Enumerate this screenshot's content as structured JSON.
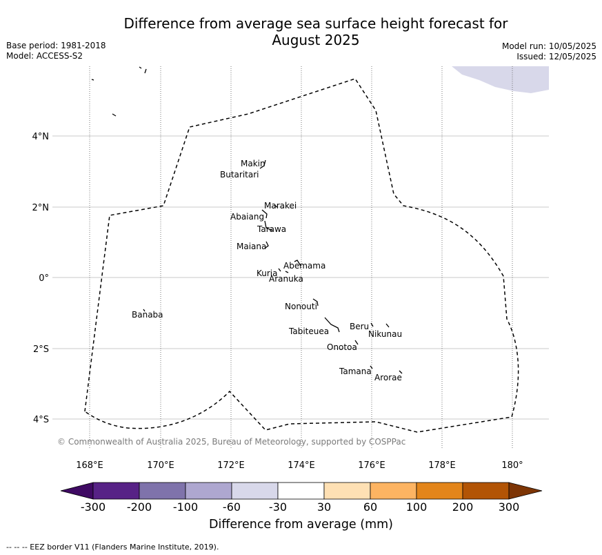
{
  "title_line1": "Difference from average sea surface height forecast for",
  "title_line2": "August 2025",
  "base_period": "Base period: 1981-2018",
  "model": "Model: ACCESS-S2",
  "model_run": "Model run: 10/05/2025",
  "issued": "Issued: 12/05/2025",
  "x_ticks": [
    "168°E",
    "170°E",
    "172°E",
    "174°E",
    "176°E",
    "178°E",
    "180°"
  ],
  "y_ticks": [
    "4°N",
    "2°N",
    "0°",
    "2°S",
    "4°S"
  ],
  "islands": [
    "Makin",
    "Butaritari",
    "Marakei",
    "Abaiang",
    "Tarawa",
    "Maiana",
    "Abemama",
    "Kuria",
    "Aranuka",
    "Banaba",
    "Nonouti",
    "Tabiteuea",
    "Beru",
    "Nikunau",
    "Onotoa",
    "Tamana",
    "Arorae"
  ],
  "copyright": "© Commonwealth of Australia 2025, Bureau of Meteorology, supported by COSPPac",
  "colorbar": {
    "title": "Difference from average (mm)",
    "tick_labels": [
      "-300",
      "-200",
      "-100",
      "-60",
      "-30",
      "30",
      "60",
      "100",
      "200",
      "300"
    ],
    "colors": {
      "below_min": "#3f0a63",
      "bins": [
        "#572286",
        "#7f73ab",
        "#aea7d0",
        "#d8d8ea",
        "#ffffff",
        "#fee0b4",
        "#fdb462",
        "#e3851a",
        "#b25405"
      ],
      "above_max": "#7d3505"
    }
  },
  "footer": "--  --  -- EEZ border V11 (Flanders Marine Institute, 2019)."
}
